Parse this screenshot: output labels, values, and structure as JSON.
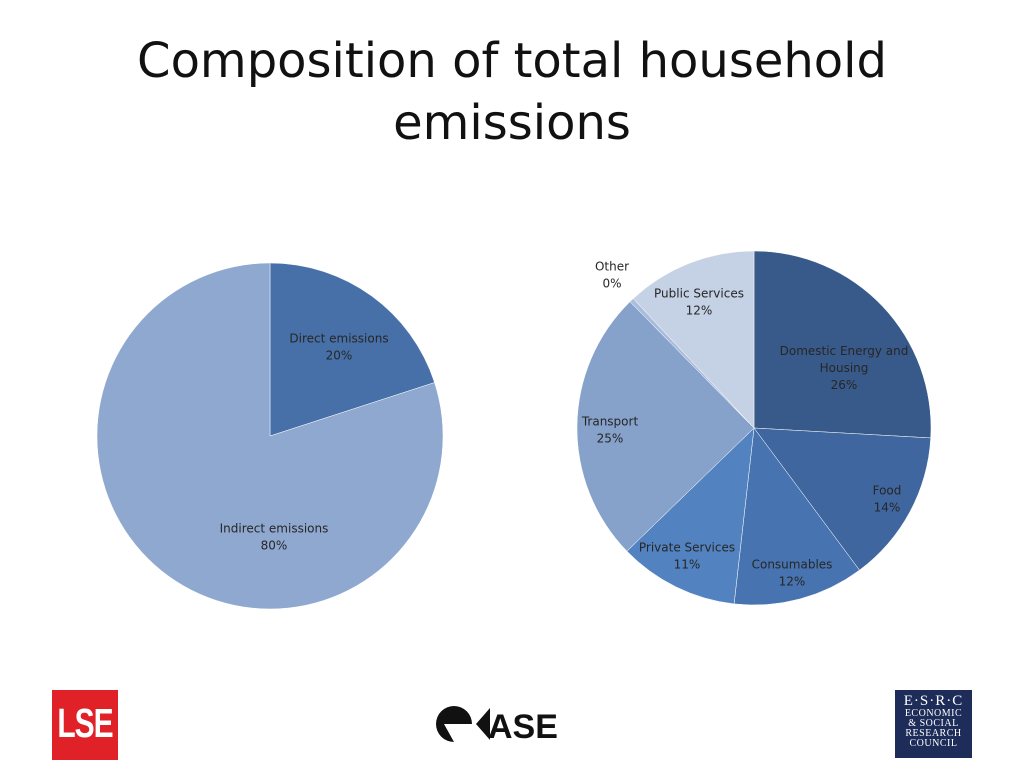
{
  "title": {
    "line1": "Composition of total household",
    "line2": "emissions"
  },
  "chart_data": [
    {
      "type": "pie",
      "slices": [
        {
          "label": "Direct emissions",
          "value_label": "20%",
          "value": 20,
          "color": "#4770a8"
        },
        {
          "label": "Indirect emissions",
          "value_label": "80%",
          "value": 80,
          "color": "#8fa8d0"
        }
      ]
    },
    {
      "type": "pie",
      "slices": [
        {
          "label": "Domestic Energy and Housing",
          "value_label": "26%",
          "value": 26,
          "color": "#385a8a"
        },
        {
          "label": "Food",
          "value_label": "14%",
          "value": 14,
          "color": "#4066a0"
        },
        {
          "label": "Consumables",
          "value_label": "12%",
          "value": 12,
          "color": "#4774b0"
        },
        {
          "label": "Private Services",
          "value_label": "11%",
          "value": 11,
          "color": "#5283c0"
        },
        {
          "label": "Transport",
          "value_label": "25%",
          "value": 25,
          "color": "#86a2cb"
        },
        {
          "label": "Other",
          "value_label": "0%",
          "value": 0.4,
          "color": "#a9bcdc"
        },
        {
          "label": "Public Services",
          "value_label": "12%",
          "value": 12,
          "color": "#c5d1e5"
        }
      ]
    }
  ],
  "logos": {
    "lse": "LSE",
    "case": "CASE",
    "esrc": {
      "top": "E·S·R·C",
      "lines": [
        "ECONOMIC",
        "& SOCIAL",
        "RESEARCH",
        "COUNCIL"
      ]
    }
  }
}
